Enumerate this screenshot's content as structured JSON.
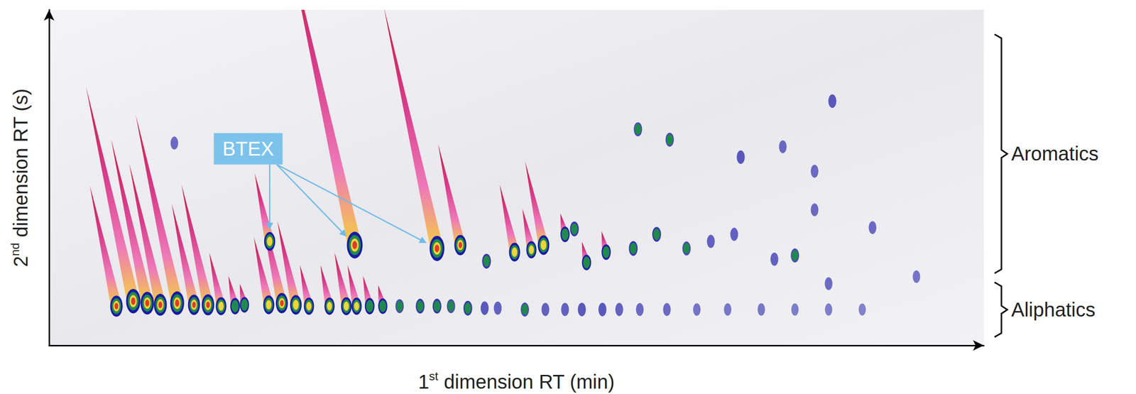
{
  "chart_data": {
    "type": "scatter",
    "x_label": "1st dimension RT (min)",
    "y_label": "2nd dimension RT (s)",
    "xlim": [
      0,
      100
    ],
    "ylim": [
      0,
      100
    ],
    "xticks": [],
    "yticks": [],
    "tick_labels": false,
    "grid": false,
    "peaks": {
      "x": [
        7.2,
        9.0,
        10.5,
        11.9,
        13.7,
        15.5,
        17.0,
        18.4,
        19.9,
        20.9,
        23.5,
        24.9,
        26.4,
        27.8,
        30.0,
        31.8,
        32.9,
        34.3,
        35.7,
        37.5,
        39.7,
        41.5,
        43.0,
        44.8,
        46.6,
        48.0,
        50.9,
        53.1,
        55.2,
        57.0,
        59.2,
        61.0,
        63.2,
        66.1,
        69.3,
        72.6,
        76.2,
        79.8,
        83.4,
        87.0,
        23.6,
        32.7,
        41.5,
        44.0,
        46.8,
        49.8,
        51.6,
        52.9,
        55.2,
        56.2,
        57.5,
        59.6,
        62.5,
        65.0,
        68.2,
        70.8,
        73.3,
        77.6,
        79.8,
        81.9,
        83.4,
        13.4,
        63.0,
        66.4,
        74.0,
        78.5,
        83.8,
        88.1,
        92.8,
        81.9
      ],
      "y": [
        11.7,
        13.2,
        12.6,
        12.1,
        12.6,
        12.1,
        12.1,
        11.7,
        11.7,
        12.1,
        12.1,
        12.6,
        12.1,
        11.7,
        11.7,
        11.7,
        11.7,
        11.7,
        11.7,
        11.7,
        11.7,
        11.7,
        11.7,
        11.1,
        11.1,
        11.1,
        10.7,
        10.7,
        10.7,
        10.7,
        10.7,
        10.7,
        10.7,
        10.7,
        10.7,
        10.7,
        10.7,
        10.7,
        10.7,
        10.7,
        31.0,
        29.9,
        28.9,
        29.9,
        25.1,
        27.8,
        28.5,
        29.9,
        33.1,
        34.7,
        24.7,
        27.8,
        28.9,
        33.1,
        28.9,
        31.0,
        33.1,
        25.7,
        26.8,
        40.4,
        18.4,
        60.3,
        64.4,
        61.3,
        56.1,
        59.2,
        72.8,
        35.1,
        20.5,
        51.9
      ],
      "intensity": [
        60,
        80,
        70,
        65,
        75,
        55,
        60,
        40,
        30,
        25,
        45,
        55,
        50,
        35,
        35,
        40,
        35,
        30,
        25,
        15,
        20,
        20,
        15,
        20,
        12,
        10,
        15,
        10,
        10,
        12,
        12,
        10,
        8,
        8,
        6,
        5,
        5,
        4,
        4,
        3,
        45,
        95,
        85,
        55,
        20,
        45,
        35,
        50,
        25,
        20,
        25,
        25,
        20,
        20,
        15,
        10,
        10,
        10,
        15,
        8,
        8,
        8,
        15,
        15,
        12,
        8,
        12,
        8,
        6,
        8
      ]
    },
    "annotations": [
      {
        "text": "BTEX",
        "x": 21.3,
        "y": 58.6,
        "targets": [
          [
            23.6,
            31.0
          ],
          [
            32.7,
            29.9
          ],
          [
            41.5,
            28.9
          ]
        ]
      }
    ],
    "regions": [
      {
        "text": "Aromatics",
        "y_range": [
          21.5,
          92.7
        ]
      },
      {
        "text": "Aliphatics",
        "y_range": [
          2.5,
          18.8
        ]
      }
    ]
  }
}
